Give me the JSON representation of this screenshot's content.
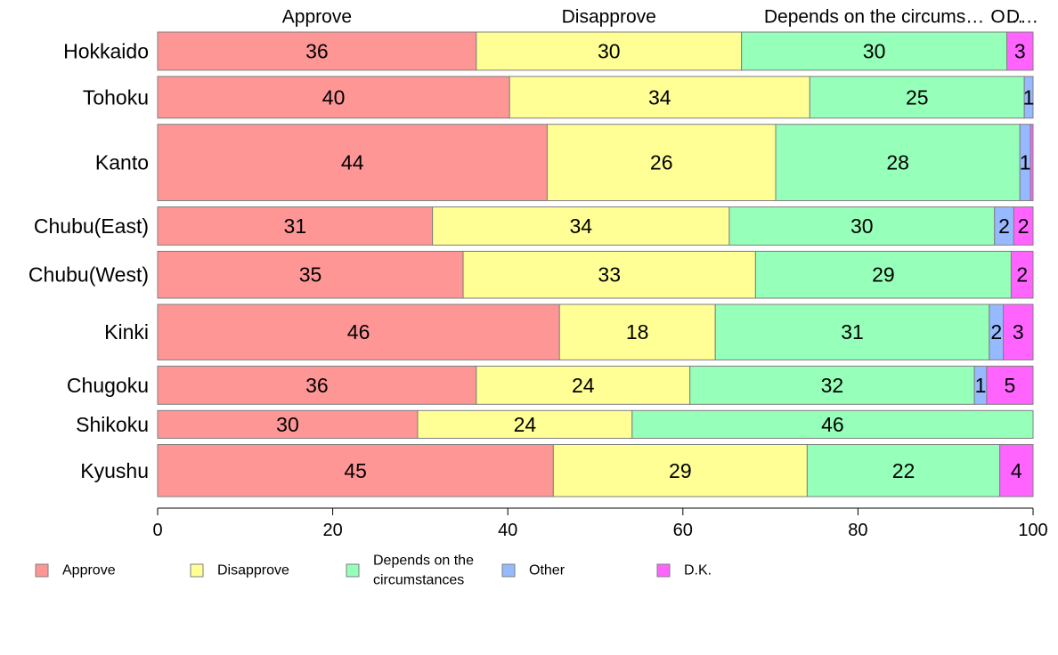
{
  "chart_data": {
    "type": "bar",
    "orientation": "horizontal",
    "stacked": true,
    "categories": [
      "Hokkaido",
      "Tohoku",
      "Kanto",
      "Chubu(East)",
      "Chubu(West)",
      "Kinki",
      "Chugoku",
      "Shikoku",
      "Kyushu"
    ],
    "series": [
      {
        "name": "Approve",
        "color": "#FF9696",
        "values": [
          36.4,
          40.2,
          44.5,
          31.4,
          34.9,
          45.9,
          36.4,
          29.7,
          45.2
        ]
      },
      {
        "name": "Disapprove",
        "color": "#FFFF96",
        "values": [
          30.3,
          34.3,
          26.1,
          33.9,
          33.4,
          17.8,
          24.4,
          24.5,
          29.0
        ]
      },
      {
        "name": "Depends on the circumstances",
        "color": "#96FFB9",
        "values": [
          30.3,
          24.5,
          27.9,
          30.3,
          29.2,
          31.3,
          32.5,
          45.8,
          22.0
        ]
      },
      {
        "name": "Other",
        "color": "#96B9FF",
        "values": [
          0.0,
          1.0,
          1.2,
          2.2,
          0.0,
          1.6,
          1.4,
          0.0,
          0.0
        ]
      },
      {
        "name": "D.K.",
        "color": "#FF64FF",
        "values": [
          3.0,
          0.0,
          0.3,
          2.2,
          2.5,
          3.4,
          5.3,
          0.0,
          3.8
        ]
      }
    ],
    "data_labels": [
      [
        "36",
        "30",
        "30",
        "",
        "3"
      ],
      [
        "40",
        "34",
        "25",
        "1",
        ""
      ],
      [
        "44",
        "26",
        "28",
        "1",
        ""
      ],
      [
        "31",
        "34",
        "30",
        "2",
        "2"
      ],
      [
        "35",
        "33",
        "29",
        "",
        "2"
      ],
      [
        "46",
        "18",
        "31",
        "2",
        "3"
      ],
      [
        "36",
        "24",
        "32",
        "1",
        "5"
      ],
      [
        "30",
        "24",
        "46",
        "",
        ""
      ],
      [
        "45",
        "29",
        "22",
        "",
        "4"
      ]
    ],
    "bar_weights": [
      44,
      48,
      88,
      44,
      54,
      64,
      44,
      32,
      60
    ],
    "top_labels": [
      "Approve",
      "Disapprove",
      "Depends on the circums…",
      "O…",
      "D…"
    ],
    "xlim": [
      0,
      100
    ],
    "xticks": [
      0,
      20,
      40,
      60,
      80,
      100
    ],
    "legend": {
      "placement": "bottom",
      "entries": [
        {
          "lines": [
            "Approve"
          ],
          "color": "#FF9696"
        },
        {
          "lines": [
            "Disapprove"
          ],
          "color": "#FFFF96"
        },
        {
          "lines": [
            "Depends on the",
            "circumstances"
          ],
          "color": "#96FFB9"
        },
        {
          "lines": [
            "Other"
          ],
          "color": "#96B9FF"
        },
        {
          "lines": [
            "D.K."
          ],
          "color": "#FF64FF"
        }
      ]
    },
    "grid": false
  }
}
